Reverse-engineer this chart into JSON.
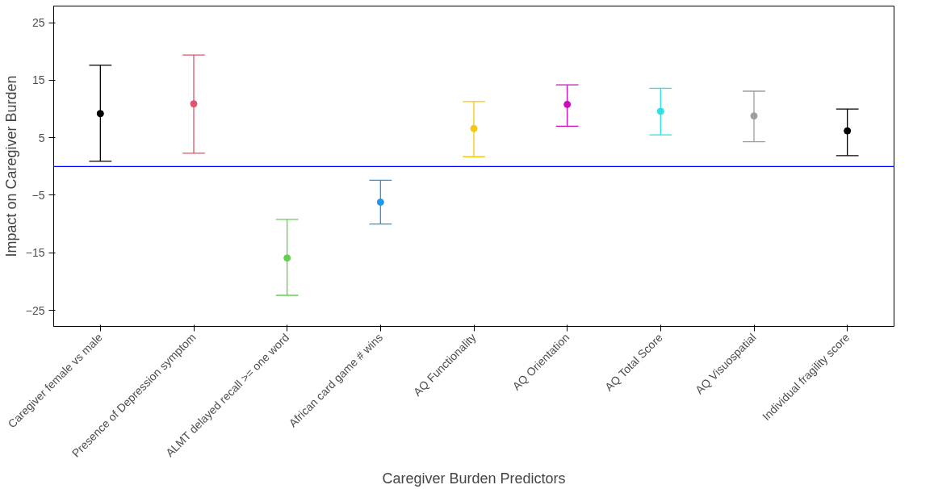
{
  "chart_data": {
    "type": "scatter",
    "xlabel": "Caregiver Burden Predictors",
    "ylabel": "Impact on Caregiver Burden",
    "categories": [
      "Caregiver female vs male",
      "Presence of Depression symptom",
      "ALMT delayed recall >= one word",
      "African card game # wins",
      "AQ Functionality",
      "AQ Orientation",
      "AQ Total Score",
      "AQ Visuospatial",
      "Individual fragility score"
    ],
    "values": [
      9.2,
      10.9,
      -15.9,
      -6.2,
      6.6,
      10.8,
      9.6,
      8.8,
      6.2
    ],
    "errors": [
      [
        0.9,
        17.6
      ],
      [
        2.3,
        19.4
      ],
      [
        -22.4,
        -9.2
      ],
      [
        -10.0,
        -2.4
      ],
      [
        1.7,
        11.3
      ],
      [
        7.0,
        14.2
      ],
      [
        5.5,
        13.6
      ],
      [
        4.3,
        13.1
      ],
      [
        1.9,
        10.0
      ]
    ],
    "colors": [
      "#000000",
      "#df536b",
      "#61d04f",
      "#2297e6",
      "#f5c710",
      "#cd0bbc",
      "#28e2e5",
      "#9e9e9e",
      "#000000"
    ],
    "ylim": [
      -27.8,
      27.9
    ],
    "yticks": [
      -25,
      -15,
      -5,
      5,
      15,
      25
    ],
    "ref_lines": [
      {
        "axis": "y",
        "value": 0,
        "color": "#0000ff"
      }
    ],
    "marker": "circle"
  }
}
